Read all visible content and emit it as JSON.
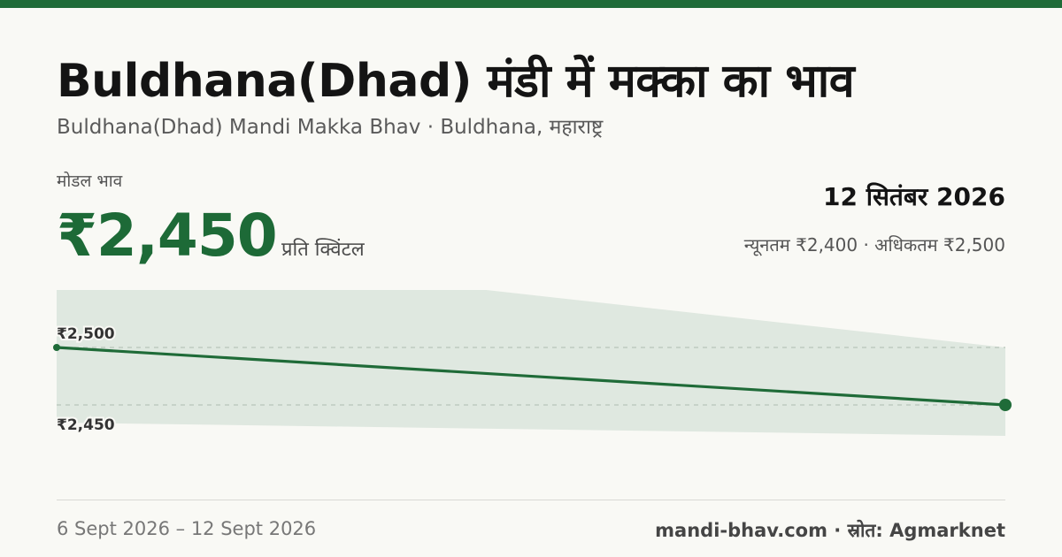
{
  "header": {
    "title": "Buldhana(Dhad) मंडी में मक्का का भाव",
    "subtitle": "Buldhana(Dhad) Mandi Makka Bhav · Buldhana, महाराष्ट्र"
  },
  "price": {
    "label": "मोडल भाव",
    "value": "₹2,450",
    "unit": "प्रति क्विंटल"
  },
  "summary": {
    "date": "12 सितंबर 2026",
    "range": "न्यूनतम ₹2,400 · अधिकतम ₹2,500"
  },
  "footer": {
    "date_range": "6 Sept 2026 – 12 Sept 2026",
    "source": "mandi-bhav.com · स्रोत: Agmarknet"
  },
  "colors": {
    "accent": "#1f6b38",
    "band": "#dfe8e0"
  },
  "chart_data": {
    "type": "line",
    "x": [
      "6 Sept 2026",
      "12 Sept 2026"
    ],
    "series": [
      {
        "values": [
          2500,
          2450
        ]
      }
    ],
    "band": {
      "min": [
        2400,
        2400
      ],
      "max": [
        2550,
        2500
      ]
    },
    "ytick_labels": [
      "₹2,500",
      "₹2,450"
    ],
    "ytick_values": [
      2500,
      2450
    ]
  }
}
